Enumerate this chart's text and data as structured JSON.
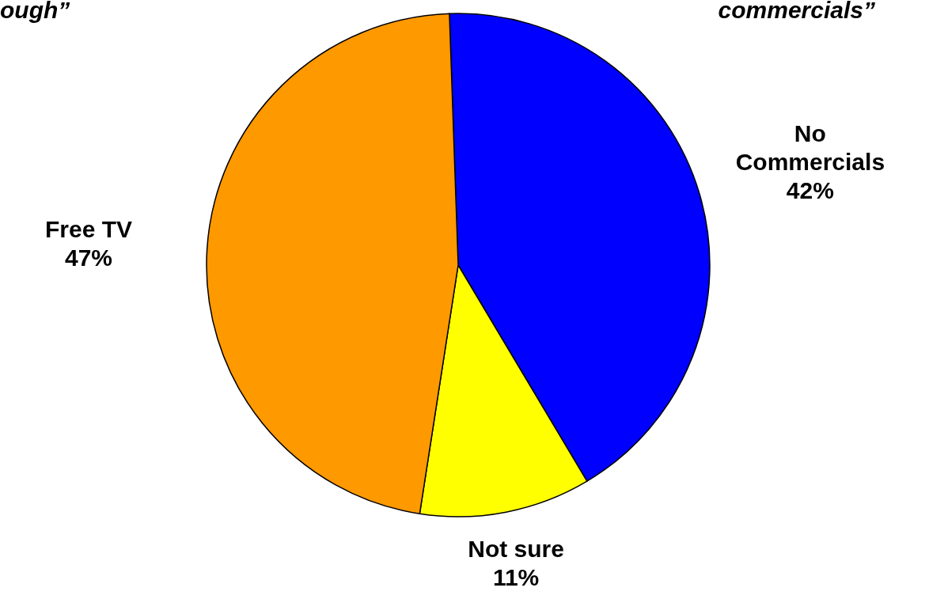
{
  "chart_data": {
    "type": "pie",
    "categories": [
      "No Commercials",
      "Not sure",
      "Free TV"
    ],
    "values": [
      42,
      11,
      47
    ],
    "colors": [
      "#0000ff",
      "#ffff00",
      "#ff9900"
    ],
    "value_labels": [
      "42%",
      "11%",
      "47%"
    ],
    "annotations": [
      "ough”",
      "commercials”"
    ]
  }
}
